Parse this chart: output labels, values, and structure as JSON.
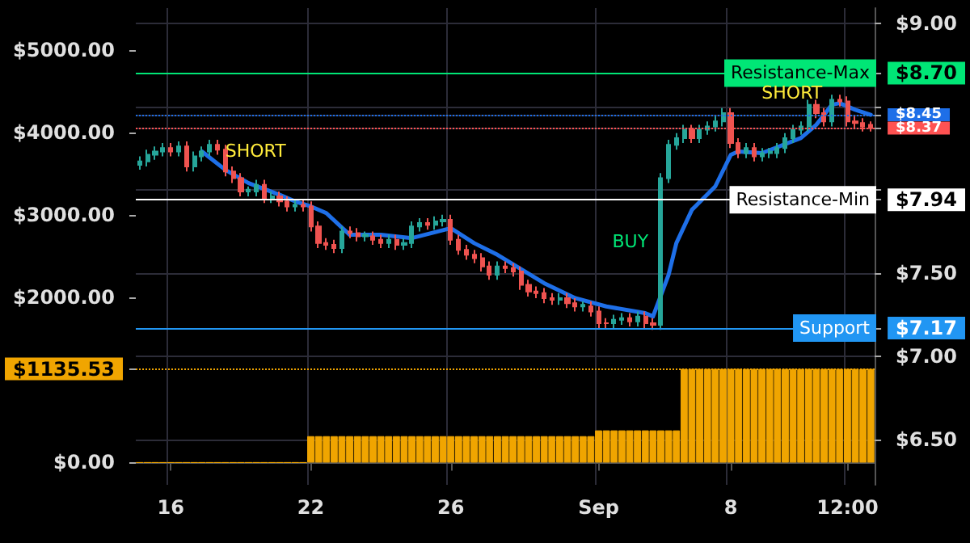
{
  "chart_data": {
    "type": "candlestick",
    "categories": [
      null,
      null,
      null,
      null,
      "16",
      null,
      null,
      null,
      null,
      null,
      null,
      null,
      null,
      null,
      null,
      null,
      null,
      null,
      null,
      null,
      null,
      null,
      "22",
      null,
      null,
      null,
      null,
      null,
      null,
      null,
      null,
      null,
      null,
      null,
      null,
      null,
      null,
      null,
      null,
      null,
      "26",
      null,
      null,
      null,
      null,
      null,
      null,
      null,
      null,
      null,
      null,
      null,
      null,
      null,
      null,
      null,
      null,
      null,
      null,
      "Sep",
      null,
      null,
      null,
      null,
      null,
      null,
      null,
      null,
      null,
      null,
      null,
      null,
      null,
      null,
      null,
      null,
      "8",
      null,
      null,
      null,
      null,
      null,
      null,
      null,
      null,
      null,
      null,
      null,
      null,
      null,
      null,
      "12:00",
      null,
      null,
      null
    ],
    "series": [
      {
        "type": "bar",
        "axis": "y",
        "color": "#f0a500",
        "values": [
          0,
          0,
          0,
          0,
          0,
          0,
          0,
          0,
          0,
          0,
          0,
          0,
          0,
          0,
          0,
          0,
          0,
          0,
          0,
          0,
          0,
          0,
          320,
          320,
          320,
          320,
          320,
          320,
          320,
          320,
          320,
          320,
          320,
          320,
          320,
          320,
          320,
          320,
          320,
          320,
          320,
          320,
          320,
          320,
          320,
          320,
          320,
          320,
          320,
          320,
          320,
          320,
          320,
          320,
          320,
          320,
          320,
          320,
          320,
          390,
          390,
          390,
          390,
          390,
          390,
          390,
          390,
          390,
          390,
          390,
          1135.53,
          1135.53,
          1135.53,
          1135.53,
          1135.53,
          1135.53,
          1135.53,
          1135.53,
          1135.53,
          1135.53,
          1135.53,
          1135.53,
          1135.53,
          1135.53,
          1135.53,
          1135.53,
          1135.53,
          1135.53,
          1135.53,
          1135.53,
          1135.53,
          1135.53,
          1135.53,
          1135.53,
          1135.53
        ]
      },
      {
        "type": "line",
        "axis": "y2",
        "color": "#1e6fe8",
        "values": [
          null,
          null,
          null,
          null,
          null,
          null,
          null,
          null,
          8.23,
          null,
          null,
          8.12,
          null,
          null,
          8.04,
          null,
          null,
          null,
          7.97,
          null,
          7.93,
          null,
          7.9,
          null,
          7.86,
          null,
          null,
          7.73,
          null,
          null,
          null,
          7.73,
          null,
          null,
          null,
          7.71,
          null,
          null,
          null,
          null,
          7.77,
          null,
          null,
          7.68,
          null,
          null,
          7.61,
          null,
          null,
          null,
          null,
          null,
          7.44,
          null,
          null,
          null,
          7.35,
          null,
          null,
          null,
          7.3,
          null,
          null,
          null,
          null,
          7.26,
          7.24,
          null,
          7.49,
          7.68,
          null,
          7.88,
          null,
          null,
          8.02,
          null,
          8.21,
          8.23,
          null,
          null,
          8.22,
          null,
          null,
          null,
          null,
          8.31,
          null,
          8.39,
          null,
          8.51,
          8.52,
          null,
          8.48,
          null,
          8.45
        ]
      },
      {
        "type": "candlestick",
        "axis": "y2",
        "colors": [
          "#26a69a",
          "#26a69a",
          "#26a69a",
          "#26a69a",
          "#ef5350",
          "#26a69a",
          "#ef5350",
          "#26a69a",
          "#26a69a",
          "#26a69a",
          "#ef5350",
          "#ef5350",
          "#ef5350",
          "#ef5350",
          "#26a69a",
          "#26a69a",
          "#ef5350",
          "#26a69a",
          "#ef5350",
          "#ef5350",
          "#26a69a",
          "#ef5350",
          "#ef5350",
          "#ef5350",
          "#ef5350",
          "#ef5350",
          "#26a69a",
          "#ef5350",
          "#ef5350",
          "#26a69a",
          "#ef5350",
          "#ef5350",
          "#26a69a",
          "#ef5350",
          "#26a69a",
          "#26a69a",
          "#26a69a",
          "#ef5350",
          "#26a69a",
          "#26a69a",
          "#ef5350",
          "#ef5350",
          "#ef5350",
          "#ef5350",
          "#ef5350",
          "#ef5350",
          "#26a69a",
          "#ef5350",
          "#ef5350",
          "#ef5350",
          "#ef5350",
          "#ef5350",
          "#ef5350",
          "#ef5350",
          "#26a69a",
          "#ef5350",
          "#ef5350",
          "#26a69a",
          "#ef5350",
          "#ef5350",
          "#ef5350",
          "#26a69a",
          "#26a69a",
          "#ef5350",
          "#26a69a",
          "#ef5350",
          "#ef5350",
          "#26a69a",
          "#26a69a",
          "#26a69a",
          "#26a69a",
          "#ef5350",
          "#26a69a",
          "#26a69a",
          "#26a69a",
          "#26a69a",
          "#ef5350",
          "#ef5350",
          "#26a69a",
          "#ef5350",
          "#26a69a",
          "#26a69a",
          "#26a69a",
          "#26a69a",
          "#26a69a",
          "#26a69a",
          "#26a69a",
          "#ef5350",
          "#ef5350",
          "#26a69a",
          "#ef5350",
          "#ef5350",
          "#ef5350",
          "#ef5350",
          "#ef5350"
        ],
        "ohlc": [
          [
            8.15,
            8.2,
            8.12,
            8.17
          ],
          [
            8.17,
            8.24,
            8.14,
            8.21
          ],
          [
            8.21,
            8.26,
            8.18,
            8.23
          ],
          [
            8.23,
            8.28,
            8.2,
            8.25
          ],
          [
            8.25,
            8.28,
            8.2,
            8.23
          ],
          [
            8.23,
            8.29,
            8.2,
            8.26
          ],
          [
            8.26,
            8.29,
            8.11,
            8.14
          ],
          [
            8.14,
            8.23,
            8.11,
            8.2
          ],
          [
            8.2,
            8.26,
            8.17,
            8.23
          ],
          [
            8.23,
            8.3,
            8.2,
            8.27
          ],
          [
            8.27,
            8.3,
            8.21,
            8.24
          ],
          [
            8.24,
            8.27,
            8.08,
            8.11
          ],
          [
            8.11,
            8.14,
            8.04,
            8.07
          ],
          [
            8.07,
            8.1,
            7.96,
            7.99
          ],
          [
            7.99,
            8.02,
            7.96,
            8.0
          ],
          [
            7.99,
            8.06,
            7.96,
            8.03
          ],
          [
            8.03,
            8.06,
            7.92,
            7.95
          ],
          [
            7.95,
            7.99,
            7.92,
            7.96
          ],
          [
            7.96,
            7.99,
            7.9,
            7.93
          ],
          [
            7.93,
            7.96,
            7.87,
            7.9
          ],
          [
            7.9,
            7.94,
            7.87,
            7.91
          ],
          [
            7.91,
            7.94,
            7.87,
            7.9
          ],
          [
            7.9,
            7.93,
            7.75,
            7.78
          ],
          [
            7.78,
            7.81,
            7.65,
            7.68
          ],
          [
            7.68,
            7.71,
            7.64,
            7.67
          ],
          [
            7.67,
            7.7,
            7.62,
            7.65
          ],
          [
            7.65,
            7.78,
            7.62,
            7.75
          ],
          [
            7.75,
            7.78,
            7.71,
            7.74
          ],
          [
            7.74,
            7.77,
            7.69,
            7.72
          ],
          [
            7.72,
            7.75,
            7.69,
            7.73
          ],
          [
            7.72,
            7.75,
            7.67,
            7.7
          ],
          [
            7.7,
            7.73,
            7.65,
            7.68
          ],
          [
            7.68,
            7.73,
            7.65,
            7.7
          ],
          [
            7.7,
            7.73,
            7.64,
            7.67
          ],
          [
            7.67,
            7.71,
            7.64,
            7.68
          ],
          [
            7.68,
            7.81,
            7.65,
            7.78
          ],
          [
            7.78,
            7.83,
            7.75,
            7.8
          ],
          [
            7.8,
            7.83,
            7.76,
            7.79
          ],
          [
            7.79,
            7.84,
            7.76,
            7.81
          ],
          [
            7.81,
            7.85,
            7.78,
            7.82
          ],
          [
            7.82,
            7.85,
            7.67,
            7.7
          ],
          [
            7.7,
            7.73,
            7.61,
            7.64
          ],
          [
            7.64,
            7.67,
            7.58,
            7.61
          ],
          [
            7.61,
            7.64,
            7.56,
            7.59
          ],
          [
            7.59,
            7.62,
            7.51,
            7.54
          ],
          [
            7.54,
            7.57,
            7.46,
            7.49
          ],
          [
            7.49,
            7.57,
            7.46,
            7.54
          ],
          [
            7.54,
            7.57,
            7.5,
            7.53
          ],
          [
            7.53,
            7.56,
            7.48,
            7.51
          ],
          [
            7.51,
            7.54,
            7.4,
            7.43
          ],
          [
            7.43,
            7.46,
            7.36,
            7.39
          ],
          [
            7.39,
            7.42,
            7.35,
            7.38
          ],
          [
            7.38,
            7.41,
            7.32,
            7.35
          ],
          [
            7.35,
            7.38,
            7.31,
            7.34
          ],
          [
            7.34,
            7.38,
            7.31,
            7.35
          ],
          [
            7.35,
            7.38,
            7.29,
            7.32
          ],
          [
            7.32,
            7.35,
            7.27,
            7.3
          ],
          [
            7.3,
            7.33,
            7.27,
            7.31
          ],
          [
            7.3,
            7.33,
            7.24,
            7.27
          ],
          [
            7.27,
            7.3,
            7.17,
            7.2
          ],
          [
            7.2,
            7.23,
            7.17,
            7.2
          ],
          [
            7.2,
            7.25,
            7.17,
            7.22
          ],
          [
            7.22,
            7.26,
            7.19,
            7.23
          ],
          [
            7.23,
            7.26,
            7.18,
            7.21
          ],
          [
            7.21,
            7.27,
            7.18,
            7.24
          ],
          [
            7.24,
            7.27,
            7.17,
            7.2
          ],
          [
            7.2,
            7.23,
            7.16,
            7.19
          ],
          [
            7.19,
            8.1,
            7.16,
            8.07
          ],
          [
            8.07,
            8.3,
            8.04,
            8.27
          ],
          [
            8.27,
            8.34,
            8.24,
            8.31
          ],
          [
            8.31,
            8.39,
            8.28,
            8.36
          ],
          [
            8.36,
            8.39,
            8.28,
            8.31
          ],
          [
            8.31,
            8.39,
            8.28,
            8.36
          ],
          [
            8.36,
            8.41,
            8.33,
            8.38
          ],
          [
            8.38,
            8.44,
            8.35,
            8.41
          ],
          [
            8.41,
            8.49,
            8.38,
            8.46
          ],
          [
            8.46,
            8.49,
            8.25,
            8.28
          ],
          [
            8.28,
            8.31,
            8.19,
            8.22
          ],
          [
            8.22,
            8.28,
            8.19,
            8.25
          ],
          [
            8.25,
            8.28,
            8.17,
            8.2
          ],
          [
            8.2,
            8.25,
            8.17,
            8.22
          ],
          [
            8.22,
            8.25,
            8.19,
            8.23
          ],
          [
            8.22,
            8.28,
            8.19,
            8.25
          ],
          [
            8.25,
            8.34,
            8.22,
            8.31
          ],
          [
            8.31,
            8.39,
            8.28,
            8.36
          ],
          [
            8.36,
            8.41,
            8.33,
            8.38
          ],
          [
            8.38,
            8.54,
            8.35,
            8.51
          ],
          [
            8.51,
            8.54,
            8.43,
            8.46
          ],
          [
            8.46,
            8.49,
            8.38,
            8.41
          ],
          [
            8.41,
            8.57,
            8.38,
            8.54
          ],
          [
            8.54,
            8.57,
            8.5,
            8.53
          ],
          [
            8.53,
            8.56,
            8.38,
            8.41
          ],
          [
            8.41,
            8.44,
            8.37,
            8.4
          ],
          [
            8.4,
            8.43,
            8.35,
            8.38
          ],
          [
            8.39,
            8.41,
            8.35,
            8.37
          ]
        ]
      }
    ],
    "ylim": [
      -270,
      5510
    ],
    "yticks": [
      {
        "value": 0,
        "label": "$0.00"
      },
      {
        "value": 1135.53,
        "label": "$1135.53"
      },
      {
        "value": 2000,
        "label": "$2000.00"
      },
      {
        "value": 3000,
        "label": "$3000.00"
      },
      {
        "value": 4000,
        "label": "$4000.00"
      },
      {
        "value": 5000,
        "label": "$5000.00"
      }
    ],
    "y2lim": [
      6.23,
      9.09
    ],
    "y2ticks": [
      {
        "value": 6.5,
        "label": "$6.50"
      },
      {
        "value": 7,
        "label": "$7.00"
      },
      {
        "value": 7.17,
        "label": "$7.17"
      },
      {
        "value": 7.5,
        "label": "$7.50"
      },
      {
        "value": 7.94,
        "label": "$7.94"
      },
      {
        "value": 8,
        "label": null
      },
      {
        "value": 8.37,
        "label": "$8.37"
      },
      {
        "value": 8.45,
        "label": "$8.45"
      },
      {
        "value": 8.5,
        "label": null
      },
      {
        "value": 8.7,
        "label": "$8.70"
      },
      {
        "value": 9,
        "label": "$9.00"
      }
    ],
    "ref_lines": [
      {
        "axis": "y2",
        "value": 8.7,
        "label": "Resistance-Max",
        "color": "#00e676",
        "line_style": "solid"
      },
      {
        "axis": "y2",
        "value": 8.45,
        "label": null,
        "color": "#1e6fe8",
        "line_style": "dotted"
      },
      {
        "axis": "y2",
        "value": 8.37,
        "label": null,
        "color": "#ff5252",
        "line_style": "dotted"
      },
      {
        "axis": "y2",
        "value": 7.94,
        "label": "Resistance-Min",
        "color": "#ffffff",
        "line_style": "solid"
      },
      {
        "axis": "y2",
        "value": 7.17,
        "label": "Support",
        "color": "#2196f3",
        "line_style": "solid"
      },
      {
        "axis": "y",
        "value": 1135.53,
        "label": null,
        "color": "#f0a500",
        "line_style": "dotted"
      }
    ],
    "annotations": [
      "SHORT",
      "BUY",
      "SHORT"
    ],
    "grid": true,
    "marker": "none"
  }
}
